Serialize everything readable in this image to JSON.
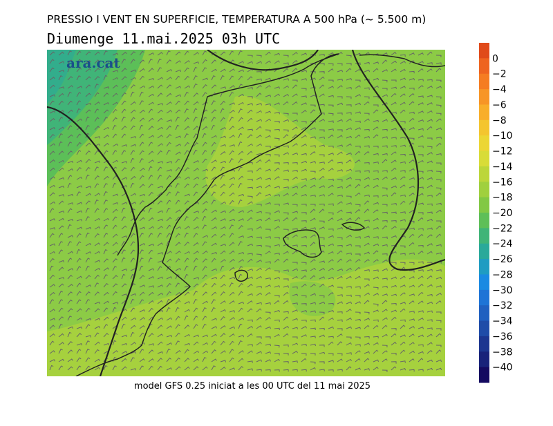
{
  "header": {
    "title": "PRESSIO I VENT EN SUPERFICIE, TEMPERATURA A 500 hPa (~ 5.500 m)",
    "subtitle": "Diumenge  11.mai.2025 03h UTC"
  },
  "map": {
    "logo": "ara.cat"
  },
  "footer": {
    "text": "model GFS 0.25 iniciat a les 00 UTC del 11 mai 2025"
  },
  "colorbar": {
    "labels": [
      "0",
      "−2",
      "−4",
      "−6",
      "−8",
      "−10",
      "−12",
      "−14",
      "−16",
      "−18",
      "−20",
      "−22",
      "−24",
      "−26",
      "−28",
      "−30",
      "−32",
      "−34",
      "−36",
      "−38",
      "−40"
    ],
    "colors": [
      "#e04a1a",
      "#ee6420",
      "#f57c22",
      "#f79526",
      "#f8ae2a",
      "#f4c52f",
      "#ecd634",
      "#d8dc38",
      "#bcd63a",
      "#a0d03e",
      "#82c844",
      "#5ebf58",
      "#40b478",
      "#2aa99a",
      "#1f9cc2",
      "#1a8ae2",
      "#1e74d6",
      "#2060c0",
      "#1f4ca8",
      "#1c3690",
      "#18227a",
      "#140a60"
    ]
  }
}
